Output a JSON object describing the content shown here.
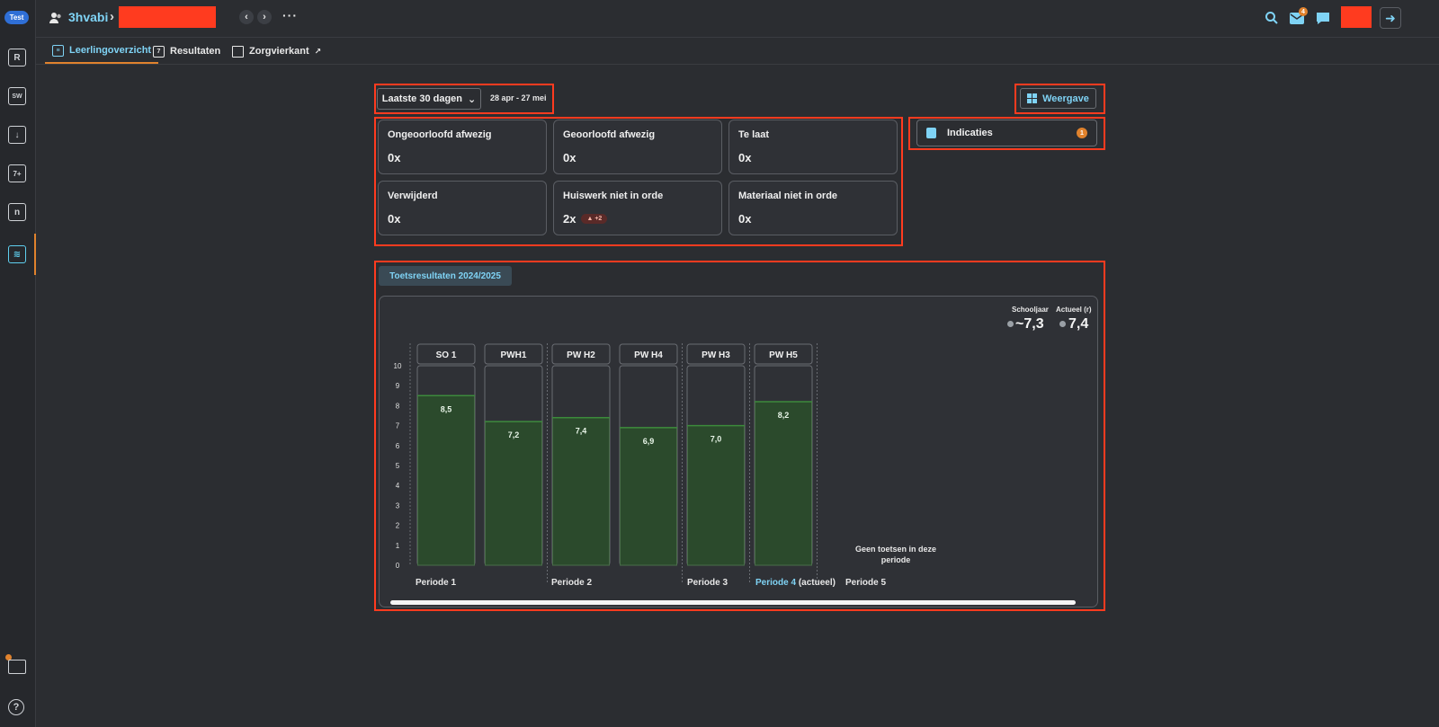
{
  "env_badge": "Test",
  "breadcrumb": {
    "group": "3hvabi",
    "separator": "›"
  },
  "topbar": {
    "more": "···",
    "mail_count": "4",
    "logout_glyph": "➜"
  },
  "tabs": [
    {
      "label": "Leerlingoverzicht",
      "active": true,
      "icon": "layers-icon"
    },
    {
      "label": "Resultaten",
      "active": false,
      "icon": "grade-icon"
    },
    {
      "label": "Zorgvierkant",
      "active": false,
      "icon": "folder-icon",
      "external": "↗"
    }
  ],
  "rail": {
    "r": "R",
    "sw": "SW",
    "arrow": "↓",
    "grade": "7+",
    "n": "n",
    "help": "?"
  },
  "filter": {
    "period_label": "Laatste 30 dagen",
    "caret": "⌄",
    "range": "28 apr - 27 mei"
  },
  "weergave": {
    "label": "Weergave"
  },
  "indicaties": {
    "label": "Indicaties",
    "count": "1"
  },
  "cards": [
    {
      "label": "Ongeoorloofd afwezig",
      "value": "0x"
    },
    {
      "label": "Geoorloofd afwezig",
      "value": "0x"
    },
    {
      "label": "Te laat",
      "value": "0x"
    },
    {
      "label": "Verwijderd",
      "value": "0x"
    },
    {
      "label": "Huiswerk niet in orde",
      "value": "2x",
      "trend": "▲ +2"
    },
    {
      "label": "Materiaal niet in orde",
      "value": "0x"
    }
  ],
  "results": {
    "tab_label": "Toetsresultaten 2024/2025",
    "schooljaar_label": "Schooljaar",
    "schooljaar_value": "~7,3",
    "actueel_label": "Actueel (r)",
    "actueel_value": "7,4",
    "no_tests": "Geen toetsen in deze periode",
    "periods": [
      {
        "label": "Periode 1"
      },
      {
        "label": "Periode 2"
      },
      {
        "label": "Periode 3"
      },
      {
        "label": "Periode 4",
        "suffix": "(actueel)",
        "current": true
      },
      {
        "label": "Periode 5"
      }
    ]
  },
  "colors": {
    "accent": "#7fd3f5",
    "orange": "#e0822d",
    "bar_fill": "#2b4a2c",
    "bar_top": "#3c8a3c",
    "highlight": "#ff3b1f"
  },
  "chart_data": {
    "type": "bar",
    "categories": [
      "SO 1",
      "PWH1",
      "PW H2",
      "PW H4",
      "PW H3",
      "PW H5"
    ],
    "values": [
      8.5,
      7.2,
      7.4,
      6.9,
      7.0,
      8.2
    ],
    "labels": [
      "8,5",
      "7,2",
      "7,4",
      "6,9",
      "7,0",
      "8,2"
    ],
    "periods": [
      "Periode 1",
      "Periode 1",
      "Periode 2",
      "Periode 2",
      "Periode 3",
      "Periode 4"
    ],
    "yticks": [
      0,
      1,
      2,
      3,
      4,
      5,
      6,
      7,
      8,
      9,
      10
    ],
    "ylim": [
      0,
      10
    ],
    "grid": false
  }
}
